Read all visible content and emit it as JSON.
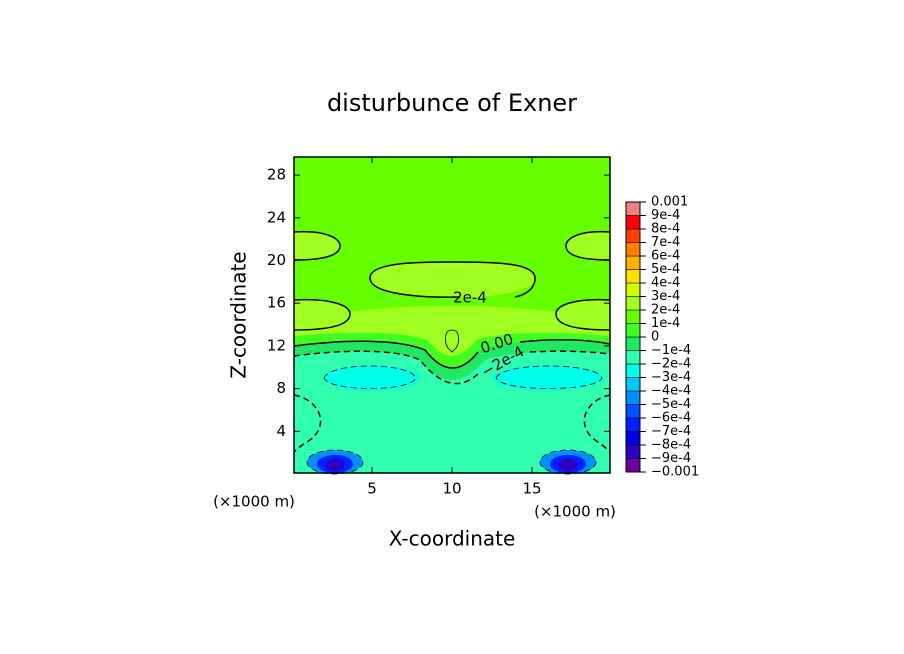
{
  "chart_data": {
    "type": "contour",
    "title": "disturbunce of Exner",
    "x_label": "X-coordinate",
    "y_label": "Z-coordinate",
    "x_unit_labels": [
      "(×1000 m)",
      "(×1000 m)"
    ],
    "xlim": [
      0,
      20
    ],
    "ylim": [
      0,
      29.7
    ],
    "xticks": [
      5,
      10,
      15
    ],
    "yticks": [
      4,
      8,
      12,
      16,
      20,
      24,
      28
    ],
    "contour_labels": [
      "2e-4",
      "0.00",
      "−2e-4"
    ],
    "colorbar": {
      "lim": [
        -0.001,
        0.001
      ],
      "ticks": [
        {
          "value": -0.001,
          "label": "−0.001"
        },
        {
          "value": -0.0009,
          "label": "−9e-4"
        },
        {
          "value": -0.0008,
          "label": "−8e-4"
        },
        {
          "value": -0.0007,
          "label": "−7e-4"
        },
        {
          "value": -0.0006,
          "label": "−6e-4"
        },
        {
          "value": -0.0005,
          "label": "−5e-4"
        },
        {
          "value": -0.0004,
          "label": "−4e-4"
        },
        {
          "value": -0.0003,
          "label": "−3e-4"
        },
        {
          "value": -0.0002,
          "label": "−2e-4"
        },
        {
          "value": -0.0001,
          "label": "−1e-4"
        },
        0,
        {
          "value": 0.0001,
          "label": "1e-4"
        },
        {
          "value": 0.0002,
          "label": "2e-4"
        },
        {
          "value": 0.0003,
          "label": "3e-4"
        },
        {
          "value": 0.0004,
          "label": "4e-4"
        },
        {
          "value": 0.0005,
          "label": "5e-4"
        },
        {
          "value": 0.0006,
          "label": "6e-4"
        },
        {
          "value": 0.0007,
          "label": "7e-4"
        },
        {
          "value": 0.0008,
          "label": "8e-4"
        },
        {
          "value": 0.0009,
          "label": "9e-4"
        },
        {
          "value": 0.001,
          "label": "0.001"
        }
      ],
      "colors": [
        "#7000a0",
        "#3000c0",
        "#0000e0",
        "#0020ff",
        "#0050ff",
        "#0090ff",
        "#00c8ff",
        "#00ffe8",
        "#30ffb0",
        "#20e860",
        "#40ff20",
        "#66ff00",
        "#a0ff20",
        "#d0ff00",
        "#ffe000",
        "#ffb000",
        "#ff8000",
        "#ff4000",
        "#ff0000",
        "#f08080"
      ]
    }
  }
}
